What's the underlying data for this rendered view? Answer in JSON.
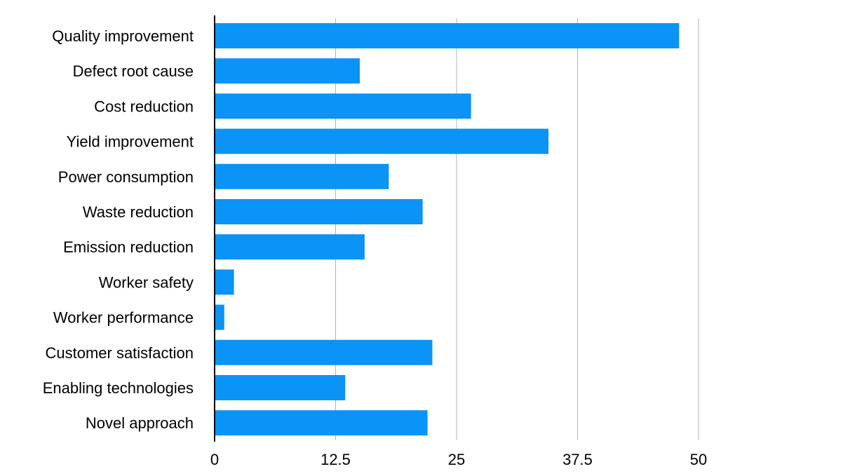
{
  "chart_data": {
    "type": "bar",
    "orientation": "horizontal",
    "categories": [
      "Quality improvement",
      "Defect root cause",
      "Cost reduction",
      "Yield improvement",
      "Power consumption",
      "Waste reduction",
      "Emission reduction",
      "Worker safety",
      "Worker performance",
      "Customer satisfaction",
      "Enabling technologies",
      "Novel approach"
    ],
    "values": [
      48,
      15,
      26.5,
      34.5,
      18,
      21.5,
      15.5,
      2,
      1,
      22.5,
      13.5,
      22
    ],
    "xlim": [
      0,
      50
    ],
    "xticks": [
      0,
      12.5,
      25,
      37.5,
      50
    ],
    "xtick_labels": [
      "0",
      "12.5",
      "25",
      "37.5",
      "50"
    ],
    "grid": "vertical",
    "bar_color": "#0b93f6"
  }
}
